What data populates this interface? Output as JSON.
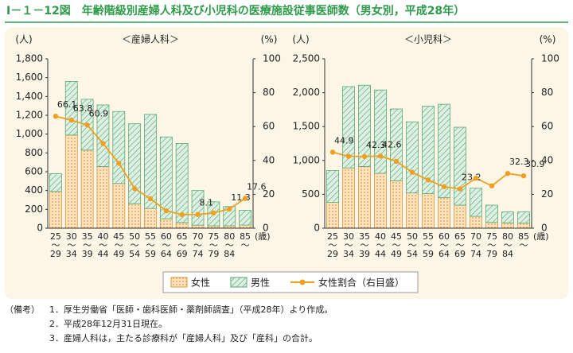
{
  "header": {
    "title": "Ⅰ－１－12図　年齢階級別産婦人科及び小児科の医療施設従事医師数（男女別，平成28年）"
  },
  "chart_data": [
    {
      "type": "bar",
      "stacked": true,
      "title": "＜産婦人科＞",
      "y_label": "(人)",
      "y2_label": "(%)",
      "x_label": "(歳)",
      "categories": [
        "25～29",
        "30～34",
        "35～39",
        "40～44",
        "45～49",
        "50～54",
        "55～59",
        "60～64",
        "65～69",
        "70～74",
        "75～79",
        "80～84",
        "85～"
      ],
      "series": [
        {
          "name": "女性",
          "color": "#f5b870",
          "values": [
            390,
            990,
            830,
            655,
            475,
            260,
            210,
            100,
            60,
            32,
            25,
            26,
            33
          ]
        },
        {
          "name": "男性",
          "color": "#8cc9a2",
          "values": [
            190,
            570,
            540,
            655,
            765,
            850,
            1000,
            870,
            840,
            368,
            255,
            204,
            157
          ]
        },
        {
          "name": "女性割合（右目盛）",
          "color": "#f0a020",
          "type": "line",
          "axis": "y2",
          "values": [
            66.1,
            63.8,
            60.9,
            50,
            38.3,
            23.4,
            17.4,
            10.3,
            8,
            8.1,
            9,
            11.3,
            17.6
          ],
          "value_labels": [
            "66.1",
            "63.8",
            "60.9",
            null,
            null,
            null,
            null,
            null,
            null,
            "8.1",
            null,
            "11.3",
            "17.6"
          ]
        }
      ],
      "ylim": [
        0,
        1800
      ],
      "yticks": [
        0,
        200,
        400,
        600,
        800,
        {
          "value": 1000,
          "label": "1,000"
        },
        {
          "value": 1200,
          "label": "1,200"
        },
        {
          "value": 1400,
          "label": "1,400"
        },
        {
          "value": 1600,
          "label": "1,600"
        },
        {
          "value": 1800,
          "label": "1,800"
        }
      ],
      "y2lim": [
        0,
        100
      ],
      "y2ticks": [
        0,
        20,
        40,
        60,
        80,
        100
      ]
    },
    {
      "type": "bar",
      "stacked": true,
      "title": "＜小児科＞",
      "y_label": "(人)",
      "y2_label": "(%)",
      "x_label": "(歳)",
      "categories": [
        "25～29",
        "30～34",
        "35～39",
        "40～44",
        "45～49",
        "50～54",
        "55～59",
        "60～64",
        "65～69",
        "70～74",
        "75～79",
        "80～84",
        "85～"
      ],
      "series": [
        {
          "name": "女性",
          "color": "#f5b870",
          "values": [
            380,
            890,
            910,
            810,
            700,
            520,
            510,
            450,
            340,
            175,
            85,
            78,
            74
          ]
        },
        {
          "name": "男性",
          "color": "#8cc9a2",
          "values": [
            470,
            1200,
            1200,
            1230,
            1060,
            1050,
            1290,
            1380,
            1150,
            415,
            255,
            162,
            166
          ]
        },
        {
          "name": "女性割合（右目盛）",
          "color": "#f0a020",
          "type": "line",
          "axis": "y2",
          "values": [
            44.9,
            42.4,
            42.3,
            42.6,
            39.5,
            33,
            28.5,
            24.5,
            23.2,
            29.5,
            25,
            32.3,
            30.9
          ],
          "value_labels": [
            "44.9",
            null,
            "42.3",
            "42.6",
            null,
            null,
            null,
            null,
            "23.2",
            null,
            null,
            "32.3",
            "30.9"
          ]
        }
      ],
      "ylim": [
        0,
        2500
      ],
      "yticks": [
        0,
        500,
        {
          "value": 1000,
          "label": "1,000"
        },
        {
          "value": 1500,
          "label": "1,500"
        },
        {
          "value": 2000,
          "label": "2,000"
        },
        {
          "value": 2500,
          "label": "2,500"
        }
      ],
      "y2lim": [
        0,
        100
      ],
      "y2ticks": [
        0,
        20,
        40,
        60,
        80,
        100
      ]
    }
  ],
  "notes": {
    "label": "（備考）",
    "items": [
      "1．厚生労働省「医師・歯科医師・薬剤師調査」（平成28年）より作成。",
      "2．平成28年12月31日現在。",
      "3．産婦人科は，主たる診療科が「産婦人科」及び「産科」の合計。"
    ]
  }
}
